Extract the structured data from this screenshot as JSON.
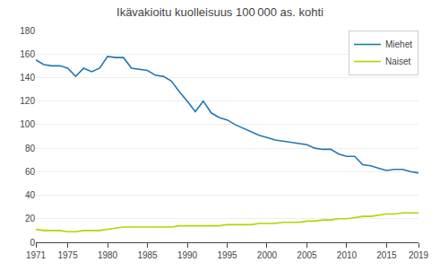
{
  "chart_data": {
    "type": "line",
    "title": "Ikävakioitu kuolleisuus 100 000 as. kohti",
    "x": [
      1971,
      1972,
      1973,
      1974,
      1975,
      1976,
      1977,
      1978,
      1979,
      1980,
      1981,
      1982,
      1983,
      1984,
      1985,
      1986,
      1987,
      1988,
      1989,
      1990,
      1991,
      1992,
      1993,
      1994,
      1995,
      1996,
      1997,
      1998,
      1999,
      2000,
      2001,
      2002,
      2003,
      2004,
      2005,
      2006,
      2007,
      2008,
      2009,
      2010,
      2011,
      2012,
      2013,
      2014,
      2015,
      2016,
      2017,
      2018,
      2019
    ],
    "series": [
      {
        "name": "Miehet",
        "color": "#1f78b4",
        "values": [
          155,
          151,
          150,
          150,
          148,
          141,
          148,
          145,
          148,
          158,
          157,
          157,
          148,
          147,
          146,
          142,
          141,
          137,
          128,
          120,
          111,
          120,
          110,
          106,
          104,
          100,
          97,
          94,
          91,
          89,
          87,
          86,
          85,
          84,
          83,
          80,
          79,
          79,
          75,
          73,
          73,
          66,
          65,
          63,
          61,
          62,
          62,
          60,
          59
        ]
      },
      {
        "name": "Naiset",
        "color": "#b3d400",
        "values": [
          11,
          10,
          10,
          10,
          9,
          9,
          10,
          10,
          10,
          11,
          12,
          13,
          13,
          13,
          13,
          13,
          13,
          13,
          14,
          14,
          14,
          14,
          14,
          14,
          15,
          15,
          15,
          15,
          16,
          16,
          16,
          17,
          17,
          17,
          18,
          18,
          19,
          19,
          20,
          20,
          21,
          22,
          22,
          23,
          24,
          24,
          25,
          25,
          25
        ]
      }
    ],
    "xlim": [
      1971,
      2019
    ],
    "xticks": [
      1971,
      1975,
      1980,
      1985,
      1990,
      1995,
      2000,
      2005,
      2010,
      2015,
      2019
    ],
    "ylim": [
      0,
      180
    ],
    "yticks": [
      0,
      20,
      40,
      60,
      80,
      100,
      120,
      140,
      160,
      180
    ],
    "grid": true,
    "legend": "upper right"
  }
}
